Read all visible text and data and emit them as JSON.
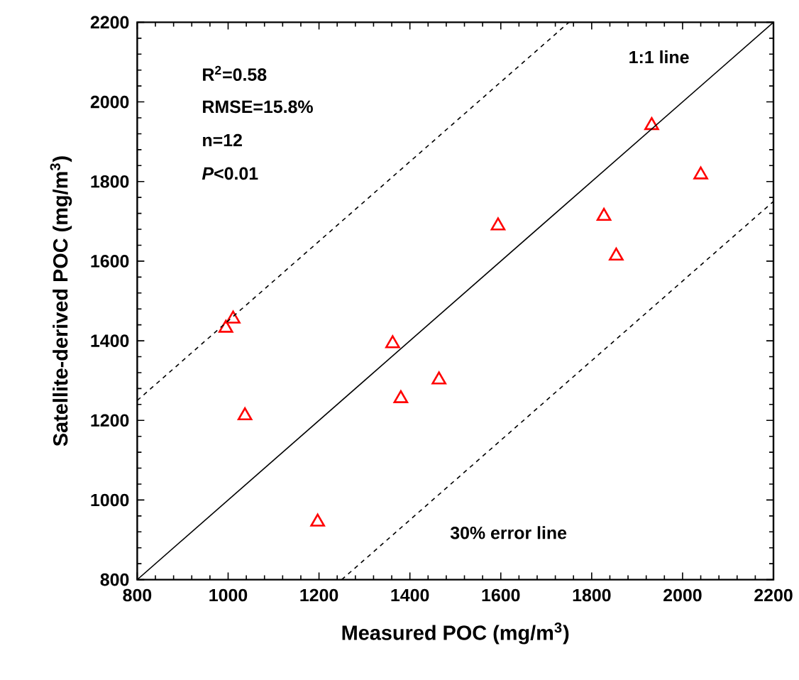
{
  "chart_data": {
    "type": "scatter",
    "xlabel": "Measured POC (mg/m$^{3}$)",
    "ylabel": "Satellite-derived POC (mg/m$^{3}$)",
    "xlim": [
      800,
      2200
    ],
    "ylim": [
      800,
      2200
    ],
    "xticks": [
      800,
      1000,
      1200,
      1400,
      1600,
      1800,
      2000,
      2200
    ],
    "yticks": [
      800,
      1000,
      1200,
      1400,
      1600,
      1800,
      2000,
      2200
    ],
    "grid": false,
    "series": [
      {
        "color": "#ff0000",
        "marker": "triangle",
        "x": [
          995,
          1011,
          1037,
          1197,
          1362,
          1380,
          1464,
          1594,
          1827,
          1854,
          1932,
          2040
        ],
        "values": [
          1432,
          1455,
          1212,
          945,
          1393,
          1255,
          1302,
          1689,
          1713,
          1613,
          1941,
          1817
        ]
      },
      {
        "type": "line",
        "color": "#000000",
        "line_style": "solid",
        "marker": "none",
        "x": [
          800,
          2200
        ],
        "values": [
          800,
          2200
        ]
      },
      {
        "type": "line",
        "color": "#000000",
        "line_style": "dashed",
        "marker": "none",
        "x": [
          800,
          1750
        ],
        "values": [
          1250,
          2200
        ]
      },
      {
        "type": "line",
        "color": "#000000",
        "line_style": "dashed",
        "marker": "none",
        "x": [
          1250,
          2200
        ],
        "values": [
          800,
          1750
        ]
      }
    ],
    "annotations": [
      "R$^{2}$=0.58",
      "RMSE=15.8%",
      "n=12",
      "*P*<0.01",
      "1:1 line",
      "30% error line"
    ]
  }
}
